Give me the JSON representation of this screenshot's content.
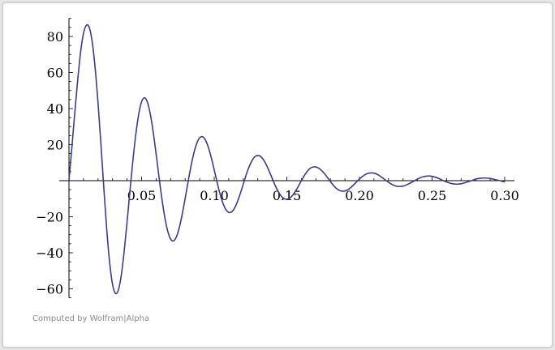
{
  "credit": "Computed by Wolfram|Alpha",
  "chart_data": {
    "type": "line",
    "title": "",
    "xlabel": "",
    "ylabel": "",
    "xlim": [
      0,
      0.3
    ],
    "ylim": [
      -65,
      90
    ],
    "grid": false,
    "x_ticks": [
      0.05,
      0.1,
      0.15,
      0.2,
      0.25,
      0.3
    ],
    "x_tick_labels": [
      "0.05",
      "0.10",
      "0.15",
      "0.20",
      "0.25",
      "0.30"
    ],
    "y_ticks": [
      -60,
      -40,
      -20,
      20,
      40,
      60,
      80
    ],
    "y_tick_labels": [
      "−60",
      "−40",
      "−20",
      "20",
      "40",
      "60",
      "80"
    ],
    "line_color": "#3b3d8f",
    "series": [
      {
        "x": [
          0.0,
          0.002,
          0.004,
          0.006,
          0.008,
          0.01,
          0.012,
          0.014,
          0.016,
          0.018,
          0.02,
          0.022,
          0.024,
          0.026,
          0.028,
          0.03,
          0.032,
          0.034,
          0.036,
          0.038,
          0.04,
          0.042,
          0.044,
          0.046,
          0.048,
          0.05,
          0.052,
          0.054,
          0.056,
          0.058,
          0.06,
          0.062,
          0.064,
          0.066,
          0.068,
          0.07,
          0.072,
          0.074,
          0.076,
          0.078,
          0.08,
          0.082,
          0.084,
          0.086,
          0.088,
          0.09,
          0.092,
          0.094,
          0.096,
          0.098,
          0.1,
          0.102,
          0.104,
          0.106,
          0.108,
          0.11,
          0.112,
          0.114,
          0.116,
          0.118,
          0.12,
          0.122,
          0.124,
          0.126,
          0.128,
          0.13,
          0.132,
          0.134,
          0.136,
          0.138,
          0.14,
          0.142,
          0.144,
          0.146,
          0.148,
          0.15,
          0.152,
          0.154,
          0.156,
          0.158,
          0.16,
          0.162,
          0.164,
          0.166,
          0.168,
          0.17,
          0.172,
          0.174,
          0.176,
          0.178,
          0.18,
          0.182,
          0.184,
          0.186,
          0.188,
          0.19,
          0.192,
          0.194,
          0.196,
          0.198,
          0.2,
          0.202,
          0.204,
          0.206,
          0.208,
          0.21,
          0.212,
          0.214,
          0.216,
          0.218,
          0.22,
          0.222,
          0.224,
          0.226,
          0.228,
          0.23,
          0.232,
          0.234,
          0.236,
          0.238,
          0.24,
          0.242,
          0.244,
          0.246,
          0.248,
          0.25,
          0.252,
          0.254,
          0.256,
          0.258,
          0.26,
          0.262,
          0.264,
          0.266,
          0.268,
          0.27,
          0.272,
          0.274,
          0.276,
          0.278,
          0.28,
          0.282,
          0.284,
          0.286,
          0.288,
          0.29,
          0.292,
          0.294,
          0.296,
          0.298,
          0.3
        ],
        "y": [
          0.0,
          18.5,
          37.6,
          55.7,
          71.2,
          81.7,
          86.2,
          84.9,
          77.0,
          62.6,
          43.1,
          20.3,
          -4.1,
          -27.0,
          -45.4,
          -57.6,
          -62.5,
          -60.7,
          -52.5,
          -39.2,
          -22.9,
          -5.6,
          11.1,
          25.6,
          36.8,
          43.8,
          46.0,
          43.6,
          36.9,
          26.9,
          14.8,
          2.0,
          -10.1,
          -20.4,
          -28.0,
          -32.4,
          -33.4,
          -31.1,
          -25.9,
          -18.5,
          -9.8,
          -0.7,
          8.0,
          15.3,
          20.7,
          23.8,
          24.4,
          22.5,
          18.4,
          12.7,
          6.0,
          -0.9,
          -7.3,
          -12.5,
          -16.0,
          -17.6,
          -17.3,
          -15.2,
          -11.6,
          -7.0,
          -1.9,
          3.2,
          7.7,
          11.1,
          13.3,
          14.0,
          13.4,
          11.5,
          8.6,
          5.0,
          1.1,
          -2.7,
          -5.9,
          -8.4,
          -9.9,
          -10.3,
          -9.7,
          -8.1,
          -5.8,
          -3.0,
          0.0,
          2.8,
          5.1,
          6.8,
          7.6,
          7.6,
          6.9,
          5.6,
          3.8,
          1.7,
          -0.5,
          -2.5,
          -4.2,
          -5.3,
          -5.8,
          -5.7,
          -5.0,
          -3.8,
          -2.3,
          -0.7,
          0.9,
          2.3,
          3.4,
          4.1,
          4.3,
          4.2,
          3.6,
          2.7,
          1.5,
          0.3,
          -0.9,
          -1.9,
          -2.7,
          -3.1,
          -3.2,
          -3.0,
          -2.5,
          -1.7,
          -0.9,
          0.0,
          0.9,
          1.7,
          2.2,
          2.5,
          2.6,
          2.4,
          2.0,
          1.4,
          0.7,
          -0.1,
          -0.7,
          -1.3,
          -1.7,
          -1.9,
          -1.9,
          -1.7,
          -1.3,
          -0.8,
          -0.3,
          0.3,
          0.8,
          1.2,
          1.4,
          1.5,
          1.4,
          1.2,
          0.9,
          0.5,
          0.1,
          -0.3,
          -0.7
        ]
      }
    ]
  }
}
